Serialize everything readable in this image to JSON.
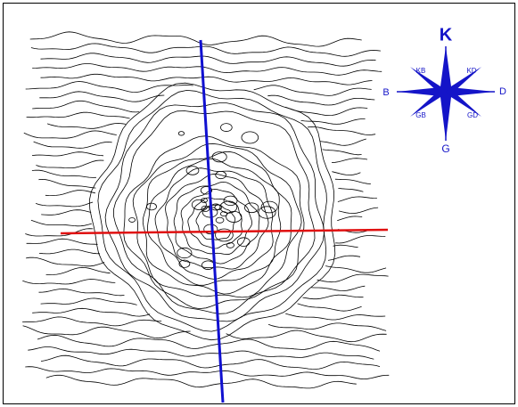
{
  "compass": {
    "north": "K",
    "northwest": "KB",
    "northeast": "KD",
    "west": "B",
    "east": "D",
    "southwest": "GB",
    "southeast": "GD",
    "south": "G"
  }
}
